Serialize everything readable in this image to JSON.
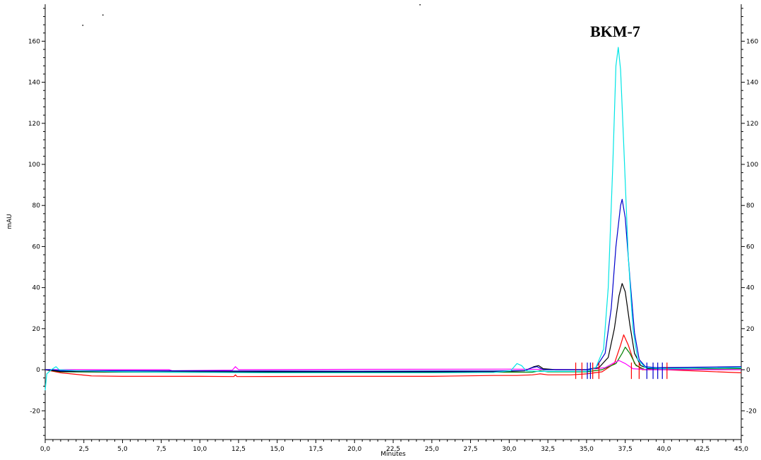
{
  "chart_data": {
    "type": "line",
    "title": "",
    "xlabel": "Minutes",
    "ylabel": "mAU",
    "annotation": "BKM-7",
    "xlim": [
      0,
      45
    ],
    "ylim": [
      -34,
      178
    ],
    "x_ticks": [
      "0,0",
      "2,5",
      "5,0",
      "7,5",
      "10,0",
      "12,5",
      "15,0",
      "17,5",
      "20,0",
      "22,5",
      "25,0",
      "27,5",
      "30,0",
      "32,5",
      "35,0",
      "37,5",
      "40,0",
      "42,5",
      "45,0"
    ],
    "y_ticks": [
      "-20",
      "0",
      "20",
      "40",
      "60",
      "80",
      "100",
      "120",
      "140",
      "160"
    ],
    "grid": false,
    "legend": "none",
    "series": [
      {
        "color": "#ff0000",
        "points": [
          [
            0,
            0
          ],
          [
            1,
            -1.5
          ],
          [
            3,
            -3
          ],
          [
            5,
            -3.2
          ],
          [
            10,
            -3.2
          ],
          [
            12.2,
            -3.3
          ],
          [
            12.3,
            -2.5
          ],
          [
            12.4,
            -3.3
          ],
          [
            20,
            -3.2
          ],
          [
            25,
            -3.2
          ],
          [
            29,
            -2.8
          ],
          [
            30.5,
            -2.8
          ],
          [
            31.5,
            -2.5
          ],
          [
            32,
            -2
          ],
          [
            32.5,
            -2.5
          ],
          [
            34,
            -2.5
          ],
          [
            35,
            -2
          ],
          [
            36,
            -1
          ],
          [
            36.8,
            3
          ],
          [
            37.2,
            12
          ],
          [
            37.4,
            17
          ],
          [
            37.7,
            12
          ],
          [
            38.1,
            3
          ],
          [
            38.6,
            0
          ],
          [
            40,
            0
          ],
          [
            45,
            -1.5
          ]
        ]
      },
      {
        "color": "#008000",
        "points": [
          [
            0,
            0
          ],
          [
            1,
            -1
          ],
          [
            5,
            -1.2
          ],
          [
            12.5,
            -1.3
          ],
          [
            20,
            -1.3
          ],
          [
            29,
            -1.2
          ],
          [
            31.5,
            -1.2
          ],
          [
            32,
            -0.5
          ],
          [
            32.5,
            -1
          ],
          [
            35,
            -1
          ],
          [
            36,
            0
          ],
          [
            36.9,
            3
          ],
          [
            37.3,
            8
          ],
          [
            37.5,
            11
          ],
          [
            37.8,
            8
          ],
          [
            38.2,
            2
          ],
          [
            38.8,
            0
          ],
          [
            45,
            0.5
          ]
        ]
      },
      {
        "color": "#ff00ff",
        "points": [
          [
            0,
            0
          ],
          [
            1,
            0
          ],
          [
            8,
            0
          ],
          [
            8.2,
            -0.5
          ],
          [
            12.1,
            -0.2
          ],
          [
            12.3,
            1.5
          ],
          [
            12.5,
            0
          ],
          [
            20,
            0.2
          ],
          [
            30,
            0.3
          ],
          [
            35,
            0
          ],
          [
            36.2,
            1
          ],
          [
            36.8,
            3.5
          ],
          [
            37.1,
            4.5
          ],
          [
            37.5,
            3
          ],
          [
            38,
            0.5
          ],
          [
            39,
            0
          ],
          [
            45,
            0
          ]
        ]
      },
      {
        "color": "#000000",
        "points": [
          [
            0,
            0
          ],
          [
            1,
            -0.8
          ],
          [
            5,
            -1
          ],
          [
            12.5,
            -1
          ],
          [
            20,
            -1
          ],
          [
            29,
            -1
          ],
          [
            31,
            -0.5
          ],
          [
            31.6,
            1.5
          ],
          [
            31.9,
            2
          ],
          [
            32.2,
            0.5
          ],
          [
            33,
            0
          ],
          [
            35,
            0
          ],
          [
            35.8,
            1
          ],
          [
            36.4,
            6
          ],
          [
            36.8,
            20
          ],
          [
            37.1,
            36
          ],
          [
            37.3,
            42
          ],
          [
            37.5,
            38
          ],
          [
            37.8,
            22
          ],
          [
            38.1,
            8
          ],
          [
            38.5,
            2
          ],
          [
            39,
            0.5
          ],
          [
            45,
            1
          ]
        ]
      },
      {
        "color": "#0000cc",
        "points": [
          [
            0,
            0
          ],
          [
            0.5,
            0
          ],
          [
            1,
            -0.5
          ],
          [
            5,
            -0.5
          ],
          [
            12.5,
            -0.6
          ],
          [
            20,
            -0.7
          ],
          [
            29,
            -0.6
          ],
          [
            31,
            -0.4
          ],
          [
            31.5,
            1
          ],
          [
            31.8,
            1.5
          ],
          [
            32.2,
            0
          ],
          [
            33,
            0
          ],
          [
            35,
            0
          ],
          [
            35.6,
            1
          ],
          [
            36.2,
            8
          ],
          [
            36.6,
            30
          ],
          [
            36.9,
            60
          ],
          [
            37.2,
            80
          ],
          [
            37.3,
            83
          ],
          [
            37.5,
            74
          ],
          [
            37.8,
            45
          ],
          [
            38.1,
            18
          ],
          [
            38.4,
            5
          ],
          [
            38.8,
            1.5
          ],
          [
            39.5,
            1
          ],
          [
            45,
            1.5
          ]
        ]
      },
      {
        "color": "#00e5e5",
        "points": [
          [
            0,
            -10
          ],
          [
            0.1,
            -2
          ],
          [
            0.4,
            0
          ],
          [
            0.7,
            1.5
          ],
          [
            0.9,
            0
          ],
          [
            2,
            -0.5
          ],
          [
            5,
            -1
          ],
          [
            10,
            -1.3
          ],
          [
            15,
            -1.5
          ],
          [
            20,
            -1.5
          ],
          [
            25,
            -1.5
          ],
          [
            29,
            -1.3
          ],
          [
            30.1,
            -0.5
          ],
          [
            30.5,
            3
          ],
          [
            30.8,
            2
          ],
          [
            31.1,
            -0.5
          ],
          [
            32,
            -0.8
          ],
          [
            35,
            -0.8
          ],
          [
            35.6,
            1
          ],
          [
            36.1,
            10
          ],
          [
            36.4,
            40
          ],
          [
            36.7,
            100
          ],
          [
            36.9,
            148
          ],
          [
            37.05,
            157
          ],
          [
            37.2,
            146
          ],
          [
            37.4,
            110
          ],
          [
            37.7,
            55
          ],
          [
            38,
            20
          ],
          [
            38.3,
            5
          ],
          [
            38.8,
            1
          ],
          [
            40,
            0.5
          ],
          [
            45,
            1
          ]
        ]
      }
    ],
    "markers": [
      {
        "color": "#0000cc",
        "x": [
          35.05,
          35.25,
          38.9,
          39.3,
          39.6,
          39.9
        ]
      },
      {
        "color": "#ff0000",
        "x": [
          34.3,
          34.7,
          35.4,
          35.8,
          37.9,
          38.4,
          40.2
        ]
      }
    ],
    "stray_dots": [
      [
        2.4,
        168
      ],
      [
        3.7,
        173
      ],
      [
        24.2,
        178
      ]
    ]
  }
}
